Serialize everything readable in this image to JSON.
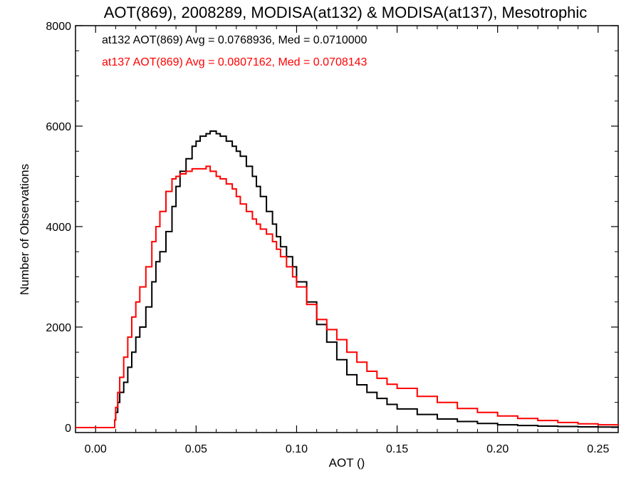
{
  "chart_data": {
    "type": "line",
    "title": "AOT(869), 2008289, MODISA(at132) & MODISA(at137), Mesotrophic",
    "xlabel": "AOT ()",
    "ylabel": "Number of Observations",
    "xlim": [
      -0.01,
      0.26
    ],
    "ylim": [
      -100,
      8000
    ],
    "x_ticks": [
      0.0,
      0.05,
      0.1,
      0.15,
      0.2,
      0.25
    ],
    "x_tick_labels": [
      "0.00",
      "0.05",
      "0.10",
      "0.15",
      "0.20",
      "0.25"
    ],
    "y_ticks": [
      0,
      2000,
      4000,
      6000,
      8000
    ],
    "y_tick_labels": [
      "0",
      "2000",
      "4000",
      "6000",
      "8000"
    ],
    "grid": false,
    "legend_position": "top-left",
    "annotations": [
      "at132 AOT(869) Avg = 0.0768936, Med = 0.0710000",
      "at137 AOT(869) Avg = 0.0807162, Med = 0.0708143"
    ],
    "series": [
      {
        "name": "at132",
        "color": "#000000",
        "x": [
          -0.01,
          0.009,
          0.0095,
          0.01,
          0.011,
          0.012,
          0.014,
          0.016,
          0.018,
          0.02,
          0.022,
          0.025,
          0.028,
          0.03,
          0.032,
          0.035,
          0.038,
          0.04,
          0.042,
          0.045,
          0.048,
          0.05,
          0.052,
          0.055,
          0.057,
          0.06,
          0.062,
          0.065,
          0.068,
          0.07,
          0.072,
          0.075,
          0.078,
          0.08,
          0.082,
          0.085,
          0.088,
          0.09,
          0.092,
          0.095,
          0.098,
          0.1,
          0.105,
          0.11,
          0.115,
          0.12,
          0.125,
          0.13,
          0.135,
          0.14,
          0.145,
          0.15,
          0.16,
          0.17,
          0.18,
          0.19,
          0.2,
          0.21,
          0.22,
          0.23,
          0.24,
          0.25,
          0.26
        ],
        "y": [
          0,
          0,
          150,
          300,
          500,
          700,
          900,
          1200,
          1500,
          1800,
          2000,
          2400,
          2900,
          3300,
          3500,
          3900,
          4400,
          4800,
          5100,
          5350,
          5600,
          5700,
          5800,
          5850,
          5900,
          5850,
          5800,
          5700,
          5600,
          5500,
          5400,
          5200,
          5000,
          4800,
          4600,
          4300,
          4050,
          3800,
          3600,
          3400,
          3200,
          2900,
          2500,
          2050,
          1700,
          1350,
          1050,
          850,
          700,
          580,
          460,
          370,
          260,
          170,
          120,
          80,
          55,
          40,
          28,
          20,
          14,
          10,
          8
        ]
      },
      {
        "name": "at137",
        "color": "#ff0000",
        "x": [
          -0.01,
          0.009,
          0.0095,
          0.01,
          0.011,
          0.012,
          0.014,
          0.016,
          0.018,
          0.02,
          0.022,
          0.025,
          0.028,
          0.03,
          0.032,
          0.035,
          0.038,
          0.04,
          0.042,
          0.045,
          0.048,
          0.05,
          0.052,
          0.055,
          0.057,
          0.06,
          0.062,
          0.065,
          0.068,
          0.07,
          0.072,
          0.075,
          0.078,
          0.08,
          0.082,
          0.085,
          0.088,
          0.09,
          0.092,
          0.095,
          0.098,
          0.1,
          0.105,
          0.11,
          0.115,
          0.12,
          0.125,
          0.13,
          0.135,
          0.14,
          0.145,
          0.15,
          0.16,
          0.17,
          0.18,
          0.19,
          0.2,
          0.21,
          0.22,
          0.23,
          0.24,
          0.25,
          0.26
        ],
        "y": [
          0,
          0,
          150,
          400,
          700,
          1000,
          1400,
          1800,
          2200,
          2500,
          2800,
          3200,
          3700,
          4000,
          4300,
          4700,
          4950,
          5000,
          5050,
          5100,
          5150,
          5150,
          5150,
          5200,
          5100,
          5000,
          4950,
          4850,
          4750,
          4600,
          4450,
          4300,
          4150,
          4050,
          3950,
          3850,
          3700,
          3550,
          3400,
          3200,
          3000,
          2800,
          2450,
          2150,
          1950,
          1750,
          1500,
          1300,
          1120,
          980,
          860,
          780,
          620,
          500,
          380,
          300,
          230,
          180,
          140,
          100,
          75,
          55,
          35
        ]
      }
    ]
  }
}
